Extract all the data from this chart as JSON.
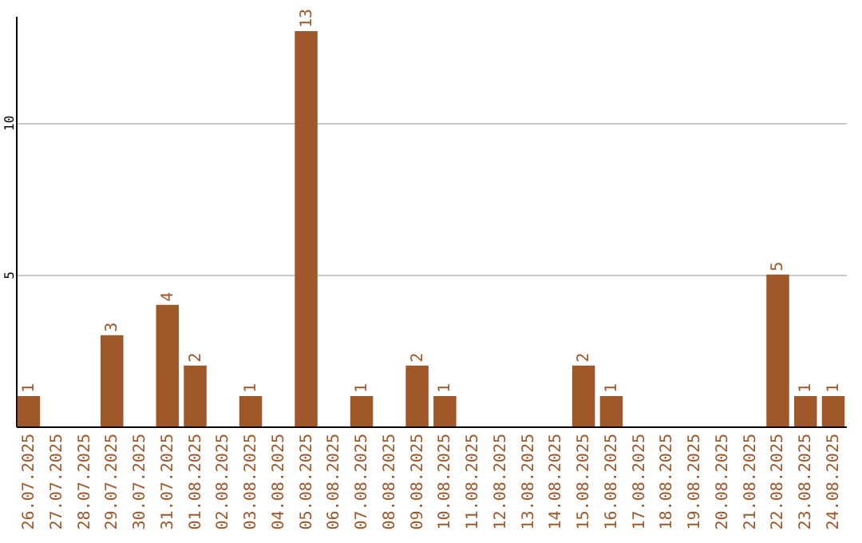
{
  "chart_data": {
    "type": "bar",
    "categories": [
      "26.07.2025",
      "27.07.2025",
      "28.07.2025",
      "29.07.2025",
      "30.07.2025",
      "31.07.2025",
      "01.08.2025",
      "02.08.2025",
      "03.08.2025",
      "04.08.2025",
      "05.08.2025",
      "06.08.2025",
      "07.08.2025",
      "08.08.2025",
      "09.08.2025",
      "10.08.2025",
      "11.08.2025",
      "12.08.2025",
      "13.08.2025",
      "14.08.2025",
      "15.08.2025",
      "16.08.2025",
      "17.08.2025",
      "18.08.2025",
      "19.08.2025",
      "20.08.2025",
      "21.08.2025",
      "22.08.2025",
      "23.08.2025",
      "24.08.2025"
    ],
    "values": [
      1,
      0,
      0,
      3,
      0,
      4,
      2,
      0,
      1,
      0,
      13,
      0,
      1,
      0,
      2,
      1,
      0,
      0,
      0,
      0,
      2,
      1,
      0,
      0,
      0,
      0,
      0,
      5,
      1,
      1
    ],
    "value_labels": [
      "1",
      null,
      null,
      "3",
      null,
      "4",
      "2",
      null,
      "1",
      null,
      "13",
      null,
      "1",
      null,
      "2",
      "1",
      null,
      null,
      null,
      null,
      "2",
      "1",
      null,
      null,
      null,
      null,
      null,
      "5",
      "1",
      "1"
    ],
    "color": "#a0572a",
    "ylim": [
      0,
      13.5
    ],
    "yticks": [
      5,
      10
    ],
    "grid": "y"
  }
}
